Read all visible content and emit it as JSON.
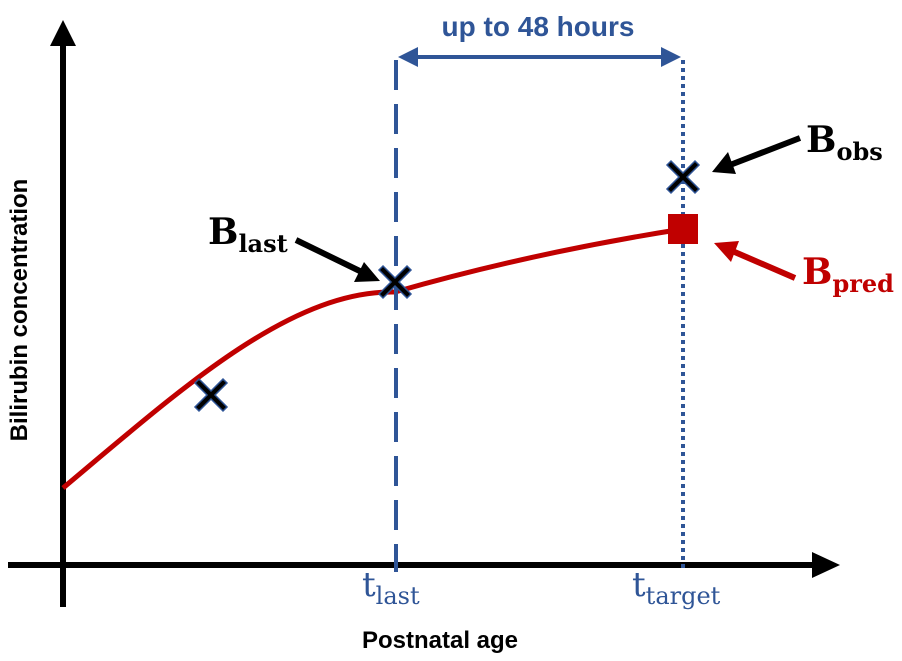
{
  "diagram": {
    "axes": {
      "x_label": "Postnatal age",
      "y_label": "Bilirubin concentration"
    },
    "interval_label": "up to 48 hours",
    "t_last": {
      "main": "t",
      "sub": "last"
    },
    "t_target": {
      "main": "t",
      "sub": "target"
    },
    "b_last": {
      "main": "B",
      "sub": "last"
    },
    "b_obs": {
      "main": "B",
      "sub": "obs"
    },
    "b_pred": {
      "main": "B",
      "sub": "pred"
    },
    "colors": {
      "axis": "#000000",
      "curve": "#c00000",
      "guide": "#2f5597",
      "marker": "#000000",
      "pred_marker": "#c00000"
    }
  }
}
